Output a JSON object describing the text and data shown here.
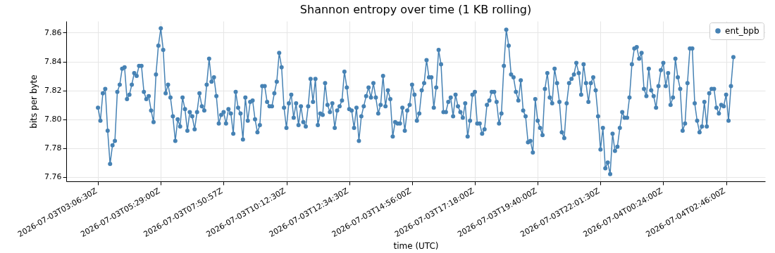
{
  "chart_data": {
    "type": "line",
    "title": "Shannon entropy over time (1 KB rolling)",
    "xlabel": "time (UTC)",
    "ylabel": "bits per byte",
    "categories": [
      "2026-07-03T03:06:30Z",
      null,
      null,
      null,
      null,
      null,
      null,
      null,
      null,
      null,
      null,
      null,
      null,
      null,
      null,
      null,
      null,
      null,
      null,
      null,
      null,
      null,
      null,
      null,
      null,
      null,
      "2026-07-03T05:29:00Z",
      null,
      null,
      null,
      null,
      null,
      null,
      null,
      null,
      null,
      null,
      null,
      null,
      null,
      null,
      null,
      null,
      null,
      null,
      null,
      null,
      null,
      null,
      null,
      null,
      null,
      "2026-07-03T07:50:57Z",
      null,
      null,
      null,
      null,
      null,
      null,
      null,
      null,
      null,
      null,
      null,
      null,
      null,
      null,
      null,
      null,
      null,
      null,
      null,
      null,
      null,
      null,
      null,
      null,
      null,
      "2026-07-03T10:12:30Z",
      null,
      null,
      null,
      null,
      null,
      null,
      null,
      null,
      null,
      null,
      null,
      null,
      null,
      null,
      null,
      null,
      null,
      null,
      null,
      null,
      null,
      null,
      null,
      null,
      null,
      "2026-07-03T12:34:30Z",
      null,
      null,
      null,
      null,
      null,
      null,
      null,
      null,
      null,
      null,
      null,
      null,
      null,
      null,
      null,
      null,
      null,
      null,
      null,
      null,
      null,
      null,
      null,
      null,
      null,
      "2026-07-03T14:56:00Z",
      null,
      null,
      null,
      null,
      null,
      null,
      null,
      null,
      null,
      null,
      null,
      null,
      null,
      null,
      null,
      null,
      null,
      null,
      null,
      null,
      null,
      null,
      null,
      null,
      null,
      "2026-07-03T17:18:00Z",
      null,
      null,
      null,
      null,
      null,
      null,
      null,
      null,
      null,
      null,
      null,
      null,
      null,
      null,
      null,
      null,
      null,
      null,
      null,
      null,
      null,
      null,
      null,
      null,
      null,
      "2026-07-03T19:40:00Z",
      null,
      null,
      null,
      null,
      null,
      null,
      null,
      null,
      null,
      null,
      null,
      null,
      null,
      null,
      null,
      null,
      null,
      null,
      null,
      null,
      null,
      null,
      null,
      null,
      null,
      "2026-07-03T22:01:30Z",
      null,
      null,
      null,
      null,
      null,
      null,
      null,
      null,
      null,
      null,
      null,
      null,
      null,
      null,
      null,
      null,
      null,
      null,
      null,
      null,
      null,
      null,
      null,
      null,
      null,
      "2026-07-04T00:24:00Z",
      null,
      null,
      null,
      null,
      null,
      null,
      null,
      null,
      null,
      null,
      null,
      null,
      null,
      null,
      null,
      null,
      null,
      null,
      null,
      null,
      null,
      null,
      null,
      null,
      null,
      "2026-07-04T02:46:00Z",
      null,
      null,
      null
    ],
    "series": [
      {
        "name": "ent_bpb",
        "color": "#4682b4",
        "values": [
          7.808,
          7.799,
          7.818,
          7.821,
          7.792,
          7.769,
          7.782,
          7.785,
          7.819,
          7.824,
          7.835,
          7.836,
          7.814,
          7.817,
          7.824,
          7.832,
          7.83,
          7.837,
          7.837,
          7.819,
          7.814,
          7.816,
          7.806,
          7.798,
          7.831,
          7.851,
          7.863,
          7.848,
          7.818,
          7.824,
          7.815,
          7.802,
          7.785,
          7.8,
          7.795,
          7.815,
          7.807,
          7.792,
          7.805,
          7.802,
          7.793,
          7.805,
          7.818,
          7.809,
          7.806,
          7.824,
          7.842,
          7.826,
          7.829,
          7.816,
          7.797,
          7.803,
          7.805,
          7.797,
          7.807,
          7.804,
          7.79,
          7.819,
          7.808,
          7.804,
          7.786,
          7.815,
          7.799,
          7.812,
          7.813,
          7.8,
          7.791,
          7.796,
          7.823,
          7.823,
          7.812,
          7.809,
          7.809,
          7.818,
          7.826,
          7.846,
          7.836,
          7.808,
          7.794,
          7.811,
          7.817,
          7.801,
          7.811,
          7.796,
          7.809,
          7.798,
          7.795,
          7.809,
          7.828,
          7.812,
          7.828,
          7.796,
          7.804,
          7.803,
          7.825,
          7.81,
          7.805,
          7.811,
          7.794,
          7.806,
          7.809,
          7.813,
          7.833,
          7.822,
          7.807,
          7.806,
          7.794,
          7.808,
          7.785,
          7.802,
          7.809,
          7.816,
          7.822,
          7.815,
          7.825,
          7.815,
          7.804,
          7.81,
          7.83,
          7.809,
          7.82,
          7.814,
          7.788,
          7.798,
          7.797,
          7.797,
          7.808,
          7.792,
          7.806,
          7.81,
          7.824,
          7.817,
          7.799,
          7.804,
          7.82,
          7.825,
          7.841,
          7.829,
          7.829,
          7.808,
          7.822,
          7.848,
          7.838,
          7.805,
          7.805,
          7.812,
          7.815,
          7.802,
          7.817,
          7.809,
          7.805,
          7.801,
          7.811,
          7.788,
          7.799,
          7.817,
          7.819,
          7.797,
          7.797,
          7.79,
          7.793,
          7.81,
          7.813,
          7.819,
          7.819,
          7.812,
          7.797,
          7.804,
          7.837,
          7.862,
          7.851,
          7.831,
          7.829,
          7.819,
          7.813,
          7.827,
          7.806,
          7.802,
          7.784,
          7.785,
          7.777,
          7.814,
          7.799,
          7.794,
          7.789,
          7.821,
          7.832,
          7.815,
          7.811,
          7.835,
          7.825,
          7.812,
          7.791,
          7.787,
          7.811,
          7.825,
          7.828,
          7.831,
          7.839,
          7.832,
          7.817,
          7.838,
          7.825,
          7.812,
          7.825,
          7.829,
          7.82,
          7.802,
          7.779,
          7.794,
          7.766,
          7.77,
          7.762,
          7.79,
          7.778,
          7.781,
          7.794,
          7.805,
          7.801,
          7.801,
          7.815,
          7.838,
          7.849,
          7.85,
          7.842,
          7.846,
          7.821,
          7.816,
          7.835,
          7.82,
          7.816,
          7.808,
          7.823,
          7.834,
          7.839,
          7.823,
          7.832,
          7.81,
          7.815,
          7.842,
          7.829,
          7.821,
          7.792,
          7.797,
          7.825,
          7.849,
          7.849,
          7.811,
          7.799,
          7.791,
          7.795,
          7.812,
          7.795,
          7.818,
          7.821,
          7.821,
          7.808,
          7.804,
          7.81,
          7.809,
          7.817,
          7.799,
          7.823,
          7.843
        ]
      }
    ],
    "ylim": [
      7.757,
      7.868
    ],
    "yticks": [
      {
        "value": 7.76,
        "label": "7.76"
      },
      {
        "value": 7.78,
        "label": "7.78"
      },
      {
        "value": 7.8,
        "label": "7.80"
      },
      {
        "value": 7.82,
        "label": "7.82"
      },
      {
        "value": 7.84,
        "label": "7.84"
      },
      {
        "value": 7.86,
        "label": "7.86"
      }
    ],
    "grid": true,
    "legend": "top right",
    "marker": "circle",
    "line_style": "solid"
  }
}
